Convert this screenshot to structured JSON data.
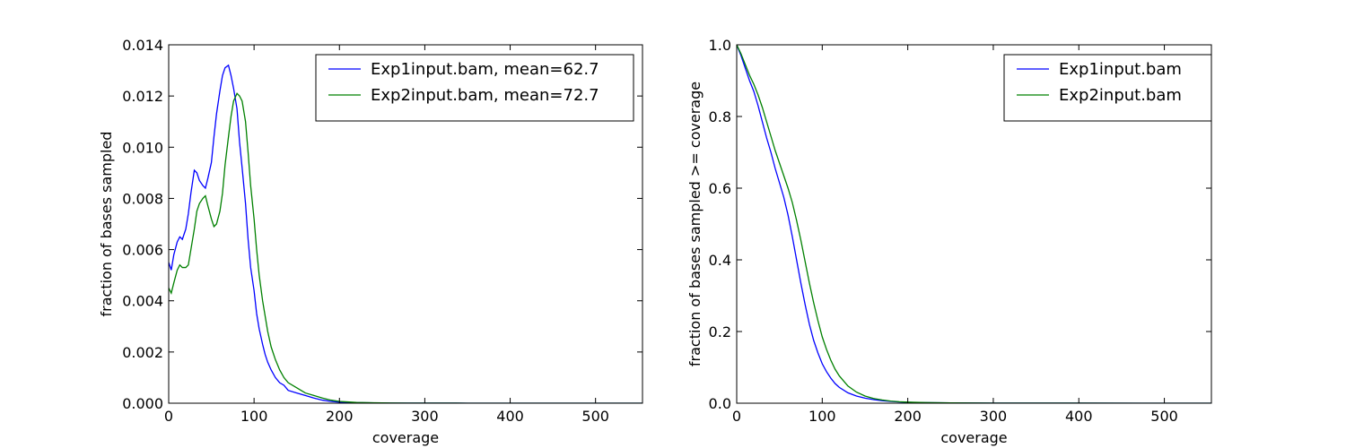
{
  "chart_data": [
    {
      "type": "line",
      "title": "",
      "xlabel": "coverage",
      "ylabel": "fraction of bases sampled",
      "xlim": [
        0,
        555
      ],
      "ylim": [
        0,
        0.014
      ],
      "xticks": [
        0,
        100,
        200,
        300,
        400,
        500
      ],
      "yticks": [
        0,
        0.002,
        0.004,
        0.006,
        0.008,
        0.01,
        0.012,
        0.014
      ],
      "ytick_labels": [
        "0.000",
        "0.002",
        "0.004",
        "0.006",
        "0.008",
        "0.010",
        "0.012",
        "0.014"
      ],
      "grid": false,
      "legend_position": "top-right",
      "series": [
        {
          "name": "Exp1input.bam, mean=62.7",
          "color": "#0000ff",
          "x": [
            0,
            3,
            6,
            10,
            13,
            16,
            20,
            23,
            26,
            30,
            33,
            36,
            40,
            43,
            46,
            50,
            53,
            56,
            60,
            63,
            66,
            70,
            73,
            76,
            80,
            83,
            86,
            90,
            93,
            96,
            100,
            103,
            106,
            110,
            113,
            116,
            120,
            125,
            130,
            135,
            140,
            150,
            160,
            170,
            180,
            190,
            200,
            220,
            240,
            260,
            280,
            300,
            350,
            400,
            450,
            500,
            555
          ],
          "y": [
            0.0055,
            0.0052,
            0.0058,
            0.0063,
            0.0065,
            0.0064,
            0.0068,
            0.0074,
            0.0082,
            0.0091,
            0.009,
            0.0087,
            0.0085,
            0.0084,
            0.0088,
            0.0094,
            0.0104,
            0.0113,
            0.0122,
            0.0128,
            0.0131,
            0.0132,
            0.0128,
            0.0123,
            0.0115,
            0.0102,
            0.0092,
            0.0078,
            0.0064,
            0.0053,
            0.0044,
            0.0035,
            0.0029,
            0.0023,
            0.0019,
            0.0016,
            0.0013,
            0.001,
            0.0008,
            0.0007,
            0.0005,
            0.0004,
            0.0003,
            0.0002,
            0.00012,
            7e-05,
            4e-05,
            2e-05,
            1e-05,
            5e-06,
            3e-06,
            2e-06,
            1e-06,
            0,
            0,
            0,
            0
          ]
        },
        {
          "name": "Exp2input.bam, mean=72.7",
          "color": "#008000",
          "x": [
            0,
            3,
            6,
            10,
            13,
            16,
            20,
            23,
            26,
            30,
            33,
            36,
            40,
            43,
            46,
            50,
            53,
            56,
            60,
            63,
            66,
            70,
            73,
            76,
            80,
            83,
            86,
            90,
            93,
            96,
            100,
            103,
            106,
            110,
            113,
            116,
            120,
            125,
            130,
            135,
            140,
            150,
            160,
            170,
            180,
            190,
            200,
            220,
            240,
            260,
            280,
            300,
            350,
            400,
            450,
            500,
            555
          ],
          "y": [
            0.0045,
            0.0043,
            0.0047,
            0.0052,
            0.0054,
            0.0053,
            0.0053,
            0.0054,
            0.006,
            0.0068,
            0.0075,
            0.0078,
            0.008,
            0.0081,
            0.0077,
            0.0072,
            0.0069,
            0.007,
            0.0075,
            0.0082,
            0.0093,
            0.0104,
            0.0112,
            0.0118,
            0.0121,
            0.012,
            0.0118,
            0.011,
            0.0098,
            0.0085,
            0.0072,
            0.006,
            0.005,
            0.004,
            0.0034,
            0.0028,
            0.0022,
            0.0017,
            0.0013,
            0.001,
            0.0008,
            0.0006,
            0.0004,
            0.0003,
            0.0002,
            0.00012,
            7e-05,
            3e-05,
            1.5e-05,
            8e-06,
            4e-06,
            2e-06,
            1e-06,
            0,
            0,
            0,
            0
          ]
        }
      ]
    },
    {
      "type": "line",
      "title": "",
      "xlabel": "coverage",
      "ylabel": "fraction of bases sampled >= coverage",
      "xlim": [
        0,
        555
      ],
      "ylim": [
        0,
        1.0
      ],
      "xticks": [
        0,
        100,
        200,
        300,
        400,
        500
      ],
      "yticks": [
        0,
        0.2,
        0.4,
        0.6,
        0.8,
        1.0
      ],
      "ytick_labels": [
        "0.0",
        "0.2",
        "0.4",
        "0.6",
        "0.8",
        "1.0"
      ],
      "grid": false,
      "legend_position": "top-right",
      "series": [
        {
          "name": "Exp1input.bam",
          "color": "#0000ff",
          "x": [
            0,
            5,
            10,
            15,
            20,
            25,
            30,
            35,
            40,
            45,
            50,
            55,
            60,
            65,
            70,
            75,
            80,
            85,
            90,
            95,
            100,
            105,
            110,
            115,
            120,
            130,
            140,
            150,
            160,
            170,
            180,
            190,
            200,
            220,
            250,
            300,
            400,
            555
          ],
          "y": [
            1.0,
            0.97,
            0.935,
            0.9,
            0.87,
            0.83,
            0.785,
            0.74,
            0.7,
            0.655,
            0.615,
            0.575,
            0.525,
            0.465,
            0.4,
            0.335,
            0.275,
            0.22,
            0.175,
            0.14,
            0.11,
            0.088,
            0.07,
            0.055,
            0.044,
            0.029,
            0.02,
            0.014,
            0.01,
            0.007,
            0.005,
            0.0035,
            0.0025,
            0.0015,
            0.0008,
            0.0004,
            0.0001,
            0
          ]
        },
        {
          "name": "Exp2input.bam",
          "color": "#008000",
          "x": [
            0,
            5,
            10,
            15,
            20,
            25,
            30,
            35,
            40,
            45,
            50,
            55,
            60,
            65,
            70,
            75,
            80,
            85,
            90,
            95,
            100,
            105,
            110,
            115,
            120,
            130,
            140,
            150,
            160,
            170,
            180,
            190,
            200,
            220,
            250,
            300,
            400,
            555
          ],
          "y": [
            1.0,
            0.975,
            0.945,
            0.915,
            0.89,
            0.86,
            0.825,
            0.785,
            0.745,
            0.705,
            0.67,
            0.635,
            0.6,
            0.56,
            0.51,
            0.455,
            0.395,
            0.335,
            0.28,
            0.23,
            0.185,
            0.15,
            0.12,
            0.095,
            0.076,
            0.048,
            0.031,
            0.02,
            0.013,
            0.009,
            0.006,
            0.004,
            0.003,
            0.0018,
            0.0009,
            0.0004,
            0.0001,
            0
          ]
        }
      ]
    }
  ]
}
